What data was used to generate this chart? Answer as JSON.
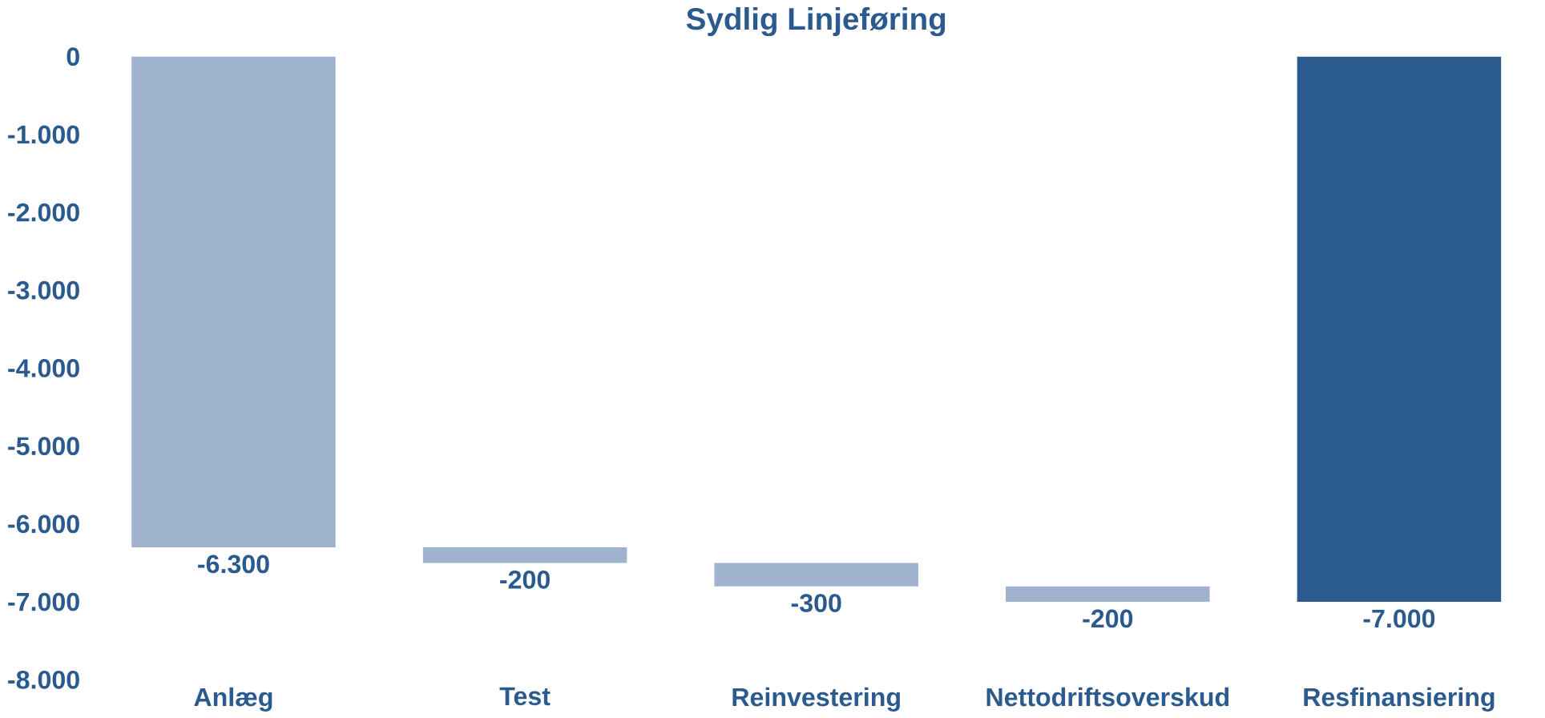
{
  "chart_data": {
    "type": "bar",
    "title": "Sydlig Linjeføring",
    "categories": [
      "Anlæg",
      "Test",
      "Reinvestering",
      "Nettodriftsoverskud",
      "Resfinansiering"
    ],
    "values": [
      -6300,
      -200,
      -300,
      -200,
      -7000
    ],
    "base": [
      0,
      -6300,
      -6500,
      -6800,
      0
    ],
    "value_labels": [
      "-6.300",
      "-200",
      "-300",
      "-200",
      "-7.000"
    ],
    "colors": [
      "#9fb3cf",
      "#9fb3cf",
      "#9fb3cf",
      "#9fb3cf",
      "#2b5a8e"
    ],
    "ylim": [
      -8000,
      0
    ],
    "yticks": [
      {
        "value": 0,
        "label": "0"
      },
      {
        "value": -1000,
        "label": "-1.000"
      },
      {
        "value": -2000,
        "label": "-2.000"
      },
      {
        "value": -3000,
        "label": "-3.000"
      },
      {
        "value": -4000,
        "label": "-4.000"
      },
      {
        "value": -5000,
        "label": "-5.000"
      },
      {
        "value": -6000,
        "label": "-6.000"
      },
      {
        "value": -7000,
        "label": "-7.000"
      },
      {
        "value": -8000,
        "label": "-8.000"
      }
    ]
  }
}
